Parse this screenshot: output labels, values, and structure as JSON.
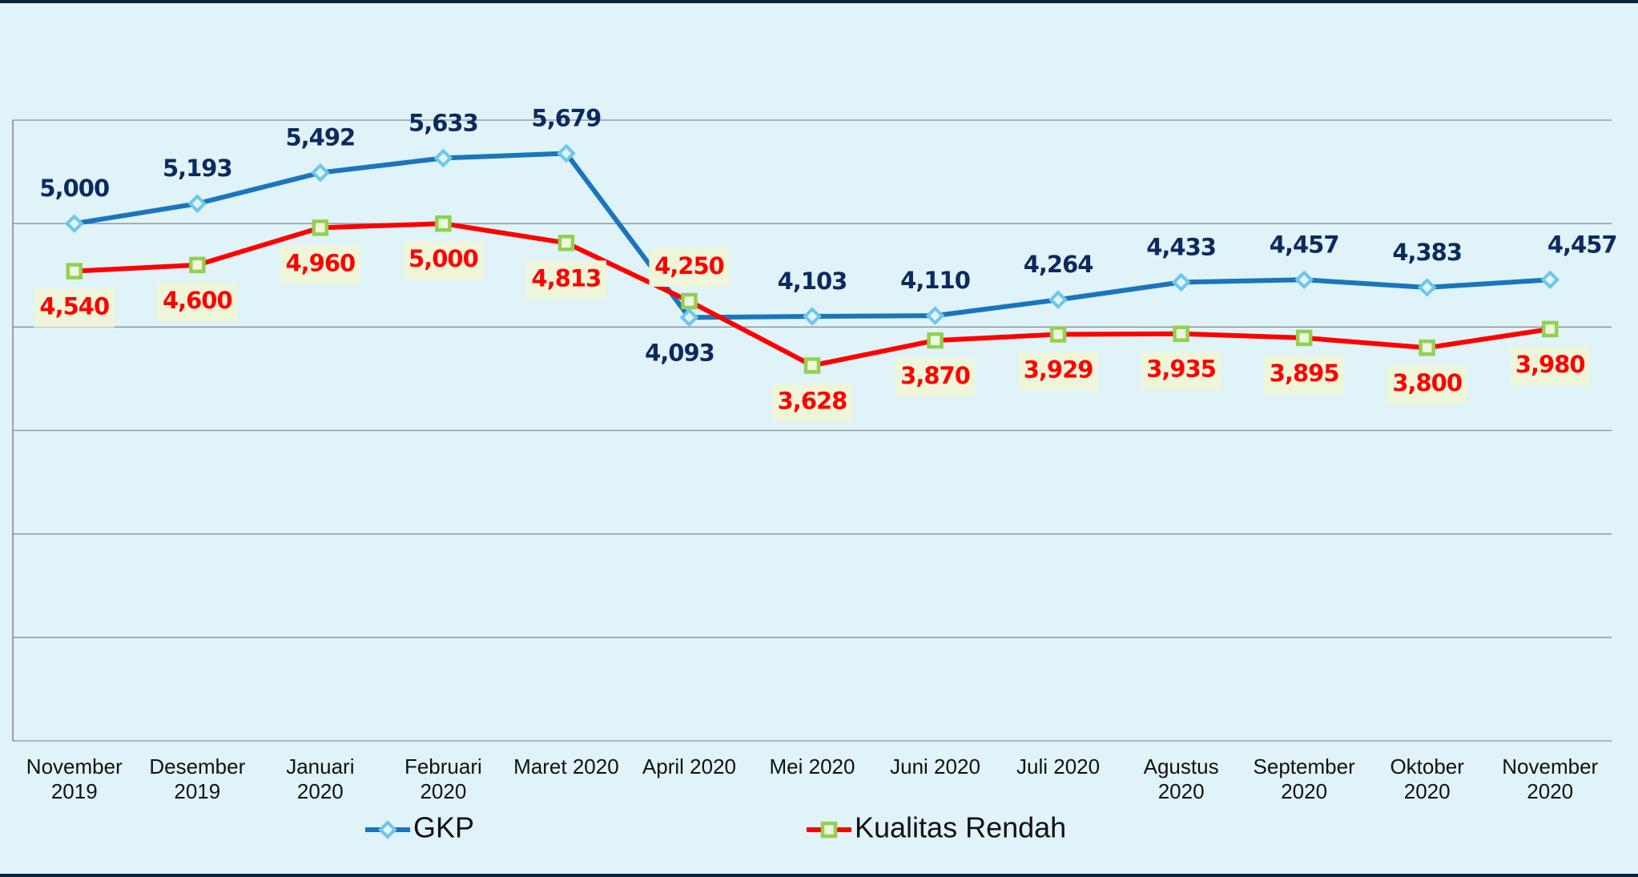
{
  "chart_data": {
    "type": "line",
    "categories": [
      "November\n2019",
      "Desember\n2019",
      "Januari\n2020",
      "Februari\n2020",
      "Maret 2020",
      "April 2020",
      "Mei 2020",
      "Juni 2020",
      "Juli 2020",
      "Agustus\n2020",
      "September\n2020",
      "Oktober\n2020",
      "November\n2020"
    ],
    "series": [
      {
        "name": "GKP",
        "color": "#1a75bc",
        "values": [
          5000,
          5193,
          5492,
          5633,
          5679,
          4093,
          4103,
          4110,
          4264,
          4433,
          4457,
          4383,
          4457
        ],
        "value_labels": [
          "5,000",
          "5,193",
          "5,492",
          "5,633",
          "5,679",
          "4,093",
          "4,103",
          "4,110",
          "4,264",
          "4,433",
          "4,457",
          "4,383",
          "4,457"
        ]
      },
      {
        "name": "Kualitas Rendah",
        "color": "#ff0000",
        "values": [
          4540,
          4600,
          4960,
          5000,
          4813,
          4250,
          3628,
          3870,
          3929,
          3935,
          3895,
          3800,
          3980
        ],
        "value_labels": [
          "4,540",
          "4,600",
          "4,960",
          "5,000",
          "4,813",
          "4,250",
          "3,628",
          "3,870",
          "3,929",
          "3,935",
          "3,895",
          "3,800",
          "3,980"
        ]
      }
    ],
    "ylim": [
      0,
      6000
    ],
    "yticks": [
      0,
      1000,
      2000,
      3000,
      4000,
      5000,
      6000
    ],
    "grid": true
  }
}
